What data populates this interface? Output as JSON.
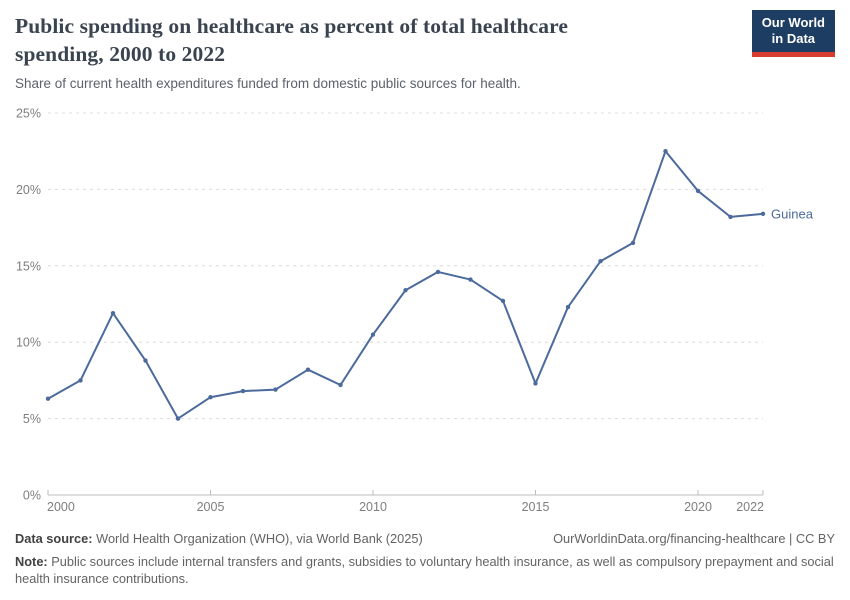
{
  "header": {
    "title": "Public spending on healthcare as percent of total healthcare spending, 2000 to 2022",
    "subtitle": "Share of current health expenditures funded from domestic public sources for health.",
    "logo": {
      "line1": "Our World",
      "line2": "in Data"
    }
  },
  "chart_data": {
    "type": "line",
    "title": "Public spending on healthcare as percent of total healthcare spending, 2000 to 2022",
    "xlabel": "",
    "ylabel": "",
    "xlim": [
      2000,
      2022
    ],
    "ylim": [
      0,
      25
    ],
    "grid": "horizontal-dashed",
    "legend_position": "end-of-line",
    "x_tick_values": [
      2000,
      2005,
      2010,
      2015,
      2020,
      2022
    ],
    "x_tick_labels": [
      "2000",
      "2005",
      "2010",
      "2015",
      "2020",
      "2022"
    ],
    "y_tick_values": [
      0,
      5,
      10,
      15,
      20,
      25
    ],
    "y_tick_labels": [
      "0%",
      "5%",
      "10%",
      "15%",
      "20%",
      "25%"
    ],
    "series": [
      {
        "name": "Guinea",
        "color": "#4c6a9c",
        "x": [
          2000,
          2001,
          2002,
          2003,
          2004,
          2005,
          2006,
          2007,
          2008,
          2009,
          2010,
          2011,
          2012,
          2013,
          2014,
          2015,
          2016,
          2017,
          2018,
          2019,
          2020,
          2021,
          2022
        ],
        "values": [
          6.3,
          7.5,
          11.9,
          8.8,
          5.0,
          6.4,
          6.8,
          6.9,
          8.2,
          7.2,
          10.5,
          13.4,
          14.6,
          14.1,
          12.7,
          7.3,
          12.3,
          15.3,
          16.5,
          22.5,
          19.9,
          18.2,
          18.4
        ]
      }
    ]
  },
  "colors": {
    "line": "#4c6a9c",
    "grid_dashed": "#dcdcdc",
    "axis": "#bcbcbc",
    "tick_text": "#7e7e7e",
    "logo_bg": "#1d3d63",
    "logo_red": "#d73c2e"
  },
  "footer": {
    "datasource_label": "Data source:",
    "datasource_text": "World Health Organization (WHO), via World Bank (2025)",
    "link_text": "OurWorldinData.org/financing-healthcare | CC BY",
    "note_label": "Note:",
    "note_text": "Public sources include internal transfers and grants, subsidies to voluntary health insurance, as well as compulsory prepayment and social health insurance contributions."
  }
}
